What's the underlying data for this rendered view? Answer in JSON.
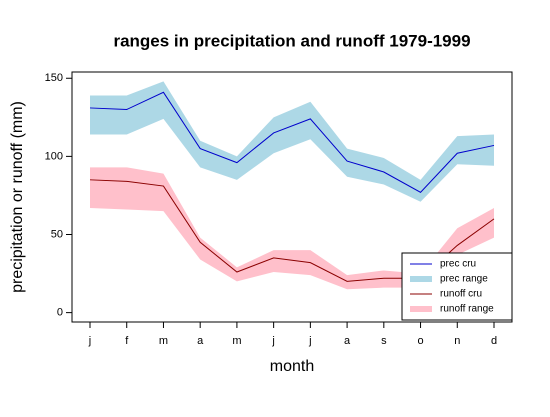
{
  "chart_data": {
    "type": "line-band",
    "title": "ranges in precipitation and runoff 1979-1999",
    "xlabel": "month",
    "ylabel": "precipitation or runoff (mm)",
    "categories": [
      "j",
      "f",
      "m",
      "a",
      "m",
      "j",
      "j",
      "a",
      "s",
      "o",
      "n",
      "d"
    ],
    "ylim": [
      -6,
      154
    ],
    "yticks": [
      0,
      50,
      100,
      150
    ],
    "legend": "bottom-right",
    "series": [
      {
        "name": "prec cru",
        "color": "#0000cc",
        "values": [
          131,
          130,
          141,
          105,
          96,
          115,
          124,
          97,
          90,
          77,
          102,
          107
        ]
      },
      {
        "name": "prec range",
        "color": "#add8e6",
        "lower": [
          114,
          114,
          124,
          93,
          85,
          102,
          111,
          87,
          82,
          71,
          95,
          94
        ],
        "upper": [
          139,
          139,
          148,
          110,
          100,
          125,
          135,
          105,
          99,
          85,
          113,
          114
        ]
      },
      {
        "name": "runoff cru",
        "color": "#8b0000",
        "values": [
          85,
          84,
          81,
          45,
          26,
          35,
          32,
          20,
          22,
          22,
          43,
          60
        ]
      },
      {
        "name": "runoff range",
        "color": "#ffc0cb",
        "lower": [
          67,
          66,
          65,
          34,
          20,
          26,
          24,
          15,
          16,
          16,
          37,
          48
        ],
        "upper": [
          93,
          93,
          89,
          48,
          29,
          40,
          40,
          24,
          27,
          25,
          54,
          67
        ]
      }
    ]
  }
}
